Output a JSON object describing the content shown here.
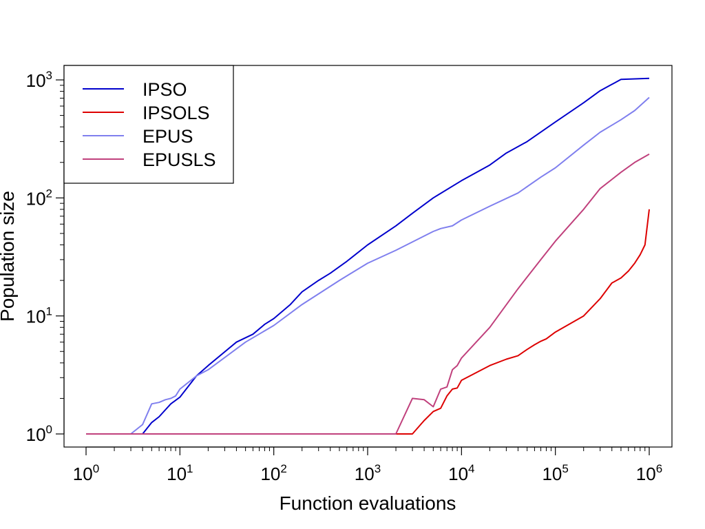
{
  "chart_data": {
    "type": "line",
    "title": "",
    "xlabel": "Function evaluations",
    "ylabel": "Population size",
    "xscale": "log",
    "yscale": "log",
    "xlim": [
      1,
      1000000
    ],
    "ylim": [
      1,
      1000
    ],
    "grid": false,
    "legend_position": "top-left",
    "x_ticks": [
      {
        "base": "10",
        "exp": "0",
        "value": 1
      },
      {
        "base": "10",
        "exp": "1",
        "value": 10
      },
      {
        "base": "10",
        "exp": "2",
        "value": 100
      },
      {
        "base": "10",
        "exp": "3",
        "value": 1000
      },
      {
        "base": "10",
        "exp": "4",
        "value": 10000
      },
      {
        "base": "10",
        "exp": "5",
        "value": 100000
      },
      {
        "base": "10",
        "exp": "6",
        "value": 1000000
      }
    ],
    "y_ticks": [
      {
        "base": "10",
        "exp": "0",
        "value": 1
      },
      {
        "base": "10",
        "exp": "1",
        "value": 10
      },
      {
        "base": "10",
        "exp": "2",
        "value": 100
      },
      {
        "base": "10",
        "exp": "3",
        "value": 1000
      }
    ],
    "series": [
      {
        "name": "IPSO",
        "color": "#0000cc",
        "points": [
          [
            1,
            1
          ],
          [
            4,
            1
          ],
          [
            5,
            1.25
          ],
          [
            6,
            1.4
          ],
          [
            8,
            1.8
          ],
          [
            10,
            2.05
          ],
          [
            15,
            3.1
          ],
          [
            20,
            3.8
          ],
          [
            40,
            6.0
          ],
          [
            60,
            7.0
          ],
          [
            80,
            8.5
          ],
          [
            100,
            9.5
          ],
          [
            150,
            12.5
          ],
          [
            200,
            16
          ],
          [
            300,
            20
          ],
          [
            400,
            23
          ],
          [
            600,
            29
          ],
          [
            1000,
            40
          ],
          [
            2000,
            58
          ],
          [
            3000,
            74
          ],
          [
            5000,
            100
          ],
          [
            10000,
            140
          ],
          [
            20000,
            190
          ],
          [
            30000,
            240
          ],
          [
            50000,
            300
          ],
          [
            100000,
            440
          ],
          [
            200000,
            640
          ],
          [
            300000,
            810
          ],
          [
            500000,
            1010
          ],
          [
            1000000,
            1030
          ]
        ]
      },
      {
        "name": "IPSOLS",
        "color": "#dd0000",
        "points": [
          [
            1,
            1
          ],
          [
            3000,
            1
          ],
          [
            4000,
            1.3
          ],
          [
            5000,
            1.55
          ],
          [
            6000,
            1.65
          ],
          [
            7000,
            2.1
          ],
          [
            8000,
            2.4
          ],
          [
            9000,
            2.45
          ],
          [
            10000,
            2.85
          ],
          [
            20000,
            3.8
          ],
          [
            30000,
            4.3
          ],
          [
            40000,
            4.6
          ],
          [
            50000,
            5.2
          ],
          [
            60000,
            5.7
          ],
          [
            70000,
            6.1
          ],
          [
            80000,
            6.4
          ],
          [
            100000,
            7.3
          ],
          [
            200000,
            10
          ],
          [
            300000,
            14
          ],
          [
            400000,
            19
          ],
          [
            500000,
            21
          ],
          [
            600000,
            24
          ],
          [
            700000,
            28
          ],
          [
            800000,
            33
          ],
          [
            900000,
            40
          ],
          [
            1000000,
            80
          ]
        ]
      },
      {
        "name": "EPUS",
        "color": "#7f7fee",
        "points": [
          [
            1,
            1
          ],
          [
            3,
            1
          ],
          [
            4,
            1.2
          ],
          [
            5,
            1.8
          ],
          [
            6,
            1.85
          ],
          [
            7,
            1.95
          ],
          [
            8,
            2
          ],
          [
            9,
            2.1
          ],
          [
            10,
            2.4
          ],
          [
            15,
            3.1
          ],
          [
            20,
            3.5
          ],
          [
            50,
            6
          ],
          [
            100,
            8.3
          ],
          [
            200,
            12.5
          ],
          [
            500,
            20
          ],
          [
            1000,
            28
          ],
          [
            2000,
            36
          ],
          [
            5000,
            52
          ],
          [
            6000,
            55
          ],
          [
            8000,
            58
          ],
          [
            10000,
            65
          ],
          [
            20000,
            85
          ],
          [
            40000,
            110
          ],
          [
            70000,
            150
          ],
          [
            100000,
            180
          ],
          [
            200000,
            280
          ],
          [
            300000,
            360
          ],
          [
            500000,
            460
          ],
          [
            700000,
            550
          ],
          [
            1000000,
            710
          ]
        ]
      },
      {
        "name": "EPUSLS",
        "color": "#c0407c",
        "points": [
          [
            1,
            1
          ],
          [
            2000,
            1
          ],
          [
            3000,
            2
          ],
          [
            4000,
            1.95
          ],
          [
            5000,
            1.7
          ],
          [
            6000,
            2.4
          ],
          [
            7000,
            2.5
          ],
          [
            8000,
            3.5
          ],
          [
            9000,
            3.8
          ],
          [
            10000,
            4.4
          ],
          [
            20000,
            8
          ],
          [
            40000,
            17
          ],
          [
            70000,
            30
          ],
          [
            100000,
            43
          ],
          [
            200000,
            80
          ],
          [
            300000,
            120
          ],
          [
            500000,
            165
          ],
          [
            700000,
            200
          ],
          [
            1000000,
            235
          ]
        ]
      }
    ]
  }
}
